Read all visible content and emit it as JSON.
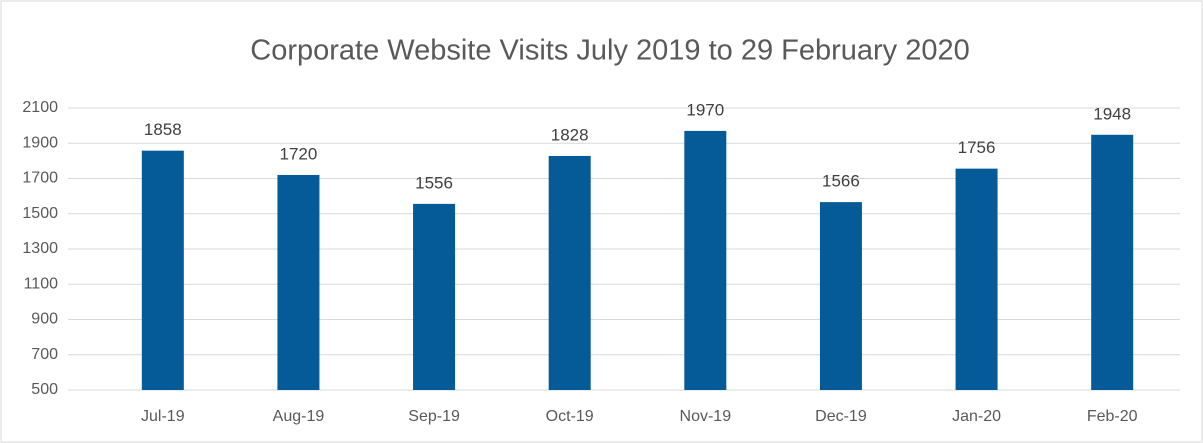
{
  "chart_data": {
    "type": "bar",
    "title": "Corporate Website Visits July 2019 to 29 February 2020",
    "categories": [
      "Jul-19",
      "Aug-19",
      "Sep-19",
      "Oct-19",
      "Nov-19",
      "Dec-19",
      "Jan-20",
      "Feb-20"
    ],
    "values": [
      1858,
      1720,
      1556,
      1828,
      1970,
      1566,
      1756,
      1948
    ],
    "color": "#055a98",
    "ylim": [
      500,
      2100
    ],
    "yticks": [
      500,
      700,
      900,
      1100,
      1300,
      1500,
      1700,
      1900,
      2100
    ],
    "grid": true
  }
}
